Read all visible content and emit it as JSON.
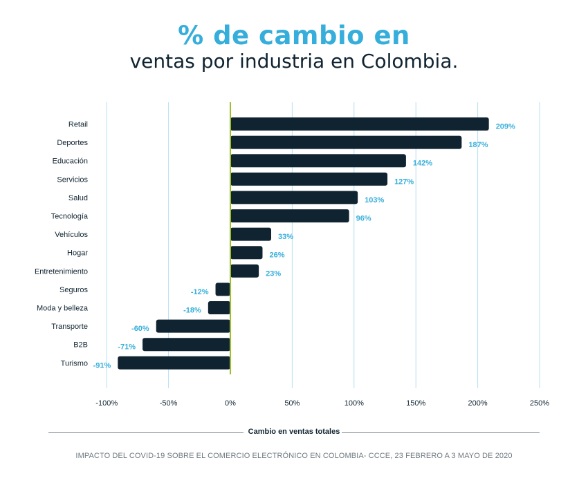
{
  "header": {
    "title": "% de cambio en",
    "subtitle": "ventas por industria en Colombia."
  },
  "colors": {
    "bar": "#0f2330",
    "value_label": "#36aedb",
    "grid": "#b7dff0",
    "zero_line": "#9cbf2c"
  },
  "chart_data": {
    "type": "bar",
    "orientation": "horizontal",
    "title": "% de cambio en ventas por industria en Colombia.",
    "xlabel": "Cambio en ventas totales",
    "ylabel": "",
    "categories": [
      "Retail",
      "Deportes",
      "Educación",
      "Servicios",
      "Salud",
      "Tecnología",
      "Vehículos",
      "Hogar",
      "Entretenimiento",
      "Seguros",
      "Moda y belleza",
      "Transporte",
      "B2B",
      "Turismo"
    ],
    "values": [
      209,
      187,
      142,
      127,
      103,
      96,
      33,
      26,
      23,
      -12,
      -18,
      -60,
      -71,
      -91
    ],
    "value_labels": [
      "209%",
      "187%",
      "142%",
      "127%",
      "103%",
      "96%",
      "33%",
      "26%",
      "23%",
      "-12%",
      "-18%",
      "-60%",
      "-71%",
      "-91%"
    ],
    "xlim": [
      -100,
      250
    ],
    "xticks": [
      -100,
      -50,
      0,
      50,
      100,
      150,
      200,
      250
    ],
    "xtick_labels": [
      "-100%",
      "-50%",
      "0%",
      "50%",
      "100%",
      "150%",
      "200%",
      "250%"
    ],
    "grid": true,
    "legend": "none"
  },
  "footer": {
    "source": "IMPACTO DEL COVID-19 SOBRE EL COMERCIO ELECTRÓNICO EN COLOMBIA- CCCE, 23 FEBRERO A 3 MAYO DE 2020"
  }
}
